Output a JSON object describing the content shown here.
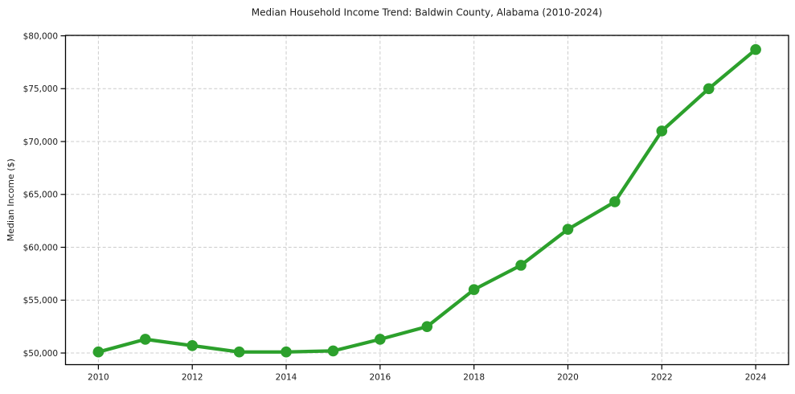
{
  "chart_data": {
    "type": "line",
    "title": "Median Household Income Trend: Baldwin County, Alabama (2010-2024)",
    "xlabel": "",
    "ylabel": "Median Income ($)",
    "x": [
      2010,
      2011,
      2012,
      2013,
      2014,
      2015,
      2016,
      2017,
      2018,
      2019,
      2020,
      2021,
      2022,
      2023,
      2024
    ],
    "series": [
      {
        "color": "#2ca02c",
        "marker": "circle",
        "values": [
          50100,
          51300,
          50700,
          50100,
          50100,
          50200,
          51300,
          52500,
          56000,
          58300,
          61700,
          64300,
          71000,
          75000,
          78700
        ]
      }
    ],
    "xlim": [
      2009.3,
      2024.7
    ],
    "ylim": [
      48900,
      80040
    ],
    "xticks": [
      2010,
      2012,
      2014,
      2016,
      2018,
      2020,
      2022,
      2024
    ],
    "xtick_labels": [
      "2010",
      "2012",
      "2014",
      "2016",
      "2018",
      "2020",
      "2022",
      "2024"
    ],
    "yticks": [
      50000,
      55000,
      60000,
      65000,
      70000,
      75000,
      80000
    ],
    "ytick_labels": [
      "$50,000",
      "$55,000",
      "$60,000",
      "$65,000",
      "$70,000",
      "$75,000",
      "$80,000"
    ],
    "grid": {
      "visible": true,
      "style": "dashed",
      "color": "#cccccc"
    },
    "legend": {
      "visible": false
    },
    "colors": {
      "line": "#2ca02c",
      "text": "#1a1a1a",
      "spine": "#000000",
      "background": "#ffffff"
    }
  }
}
